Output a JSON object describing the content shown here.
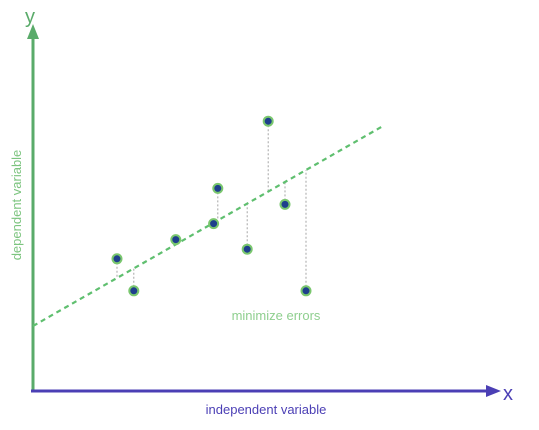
{
  "labels": {
    "y_axis_letter": "y",
    "x_axis_letter": "x",
    "y_axis_title": "dependent variable",
    "x_axis_title": "independent variable",
    "annotation": "minimize errors"
  },
  "colors": {
    "background": "#ffffff",
    "y_axis": "#5aab6a",
    "x_axis": "#4b3fb5",
    "regression_line": "#5fbf6f",
    "residual_line": "#a6a6a6",
    "point_fill": "#1e3f8c",
    "point_ring": "#7ac76e",
    "y_label": "#7cc47f",
    "x_label": "#4b3fb5",
    "annotation": "#8fcf8f"
  },
  "chart_data": {
    "type": "scatter",
    "xlim": [
      0,
      100
    ],
    "ylim": [
      0,
      100
    ],
    "regression_line": {
      "intercept": 20,
      "slope": 0.75
    },
    "points": [
      {
        "x": 20,
        "y": 41
      },
      {
        "x": 24,
        "y": 31
      },
      {
        "x": 34,
        "y": 47
      },
      {
        "x": 43,
        "y": 52
      },
      {
        "x": 44,
        "y": 63
      },
      {
        "x": 51,
        "y": 44
      },
      {
        "x": 56,
        "y": 84
      },
      {
        "x": 60,
        "y": 58
      },
      {
        "x": 65,
        "y": 31
      }
    ]
  }
}
